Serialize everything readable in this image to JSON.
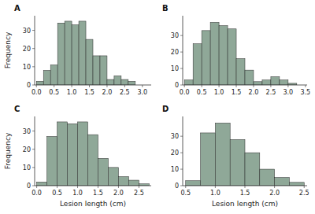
{
  "chart_data": [
    {
      "type": "histogram",
      "title": "A",
      "y_label": "Frequency",
      "color": "#8FA898",
      "values": [
        2,
        8,
        11,
        34,
        35,
        33,
        35,
        25,
        16,
        16,
        3,
        5,
        3,
        2
      ],
      "bins": [
        0,
        0.2,
        0.4,
        0.6,
        0.8,
        1.0,
        1.2,
        1.4,
        1.6,
        1.8,
        2.0,
        2.2,
        2.4,
        2.6,
        2.8
      ],
      "xlim": [
        -0.05,
        3.25
      ],
      "xticks": [
        {
          "value": 0,
          "label": "0.0"
        },
        0.5,
        {
          "value": 1,
          "label": "1.0"
        },
        1.5,
        {
          "value": 2,
          "label": "2.0"
        },
        2.5,
        {
          "value": 3,
          "label": "3.0"
        }
      ],
      "ylim": [
        0,
        38
      ],
      "yticks": [
        0,
        10,
        20,
        30
      ]
    },
    {
      "type": "histogram",
      "title": "B",
      "color": "#8FA898",
      "values": [
        3,
        25,
        33,
        38,
        36,
        34,
        16,
        9,
        2,
        3,
        5,
        3,
        1
      ],
      "bins": [
        0,
        0.25,
        0.5,
        0.75,
        1.0,
        1.25,
        1.5,
        1.75,
        2.0,
        2.25,
        2.5,
        2.75,
        3.0,
        3.25
      ],
      "xlim": [
        -0.05,
        3.55
      ],
      "xticks": [
        {
          "value": 0,
          "label": "0.0"
        },
        0.5,
        {
          "value": 1,
          "label": "1.0"
        },
        1.5,
        {
          "value": 2,
          "label": "2.0"
        },
        2.5,
        {
          "value": 3,
          "label": "3.0"
        },
        3.5
      ],
      "ylim": [
        0,
        42
      ],
      "yticks": [
        0,
        10,
        20,
        30
      ]
    },
    {
      "type": "histogram",
      "title": "C",
      "x_label": "Lesion length (cm)",
      "y_label": "Frequency",
      "color": "#8FA898",
      "values": [
        2,
        27,
        35,
        34,
        35,
        28,
        15,
        10,
        5,
        3,
        1
      ],
      "bins": [
        0,
        0.25,
        0.5,
        0.75,
        1.0,
        1.25,
        1.5,
        1.75,
        2.0,
        2.25,
        2.5,
        2.75
      ],
      "xlim": [
        -0.05,
        2.8
      ],
      "xticks": [
        {
          "value": 0,
          "label": "0.0"
        },
        0.5,
        {
          "value": 1,
          "label": "1.0"
        },
        1.5,
        {
          "value": 2,
          "label": "2.0"
        },
        2.5
      ],
      "ylim": [
        0,
        38
      ],
      "yticks": [
        0,
        10,
        20,
        30
      ]
    },
    {
      "type": "histogram",
      "title": "D",
      "x_label": "Lesion length (cm)",
      "color": "#8FA898",
      "values": [
        3,
        32,
        38,
        28,
        20,
        10,
        5,
        2
      ],
      "bins": [
        0.5,
        0.75,
        1.0,
        1.25,
        1.5,
        1.75,
        2.0,
        2.25,
        2.5
      ],
      "xlim": [
        0.45,
        2.55
      ],
      "xticks": [
        0.5,
        {
          "value": 1,
          "label": "1.0"
        },
        1.5,
        {
          "value": 2,
          "label": "2.0"
        },
        2.5
      ],
      "ylim": [
        0,
        42
      ],
      "yticks": [
        0,
        10,
        20,
        30
      ]
    }
  ]
}
